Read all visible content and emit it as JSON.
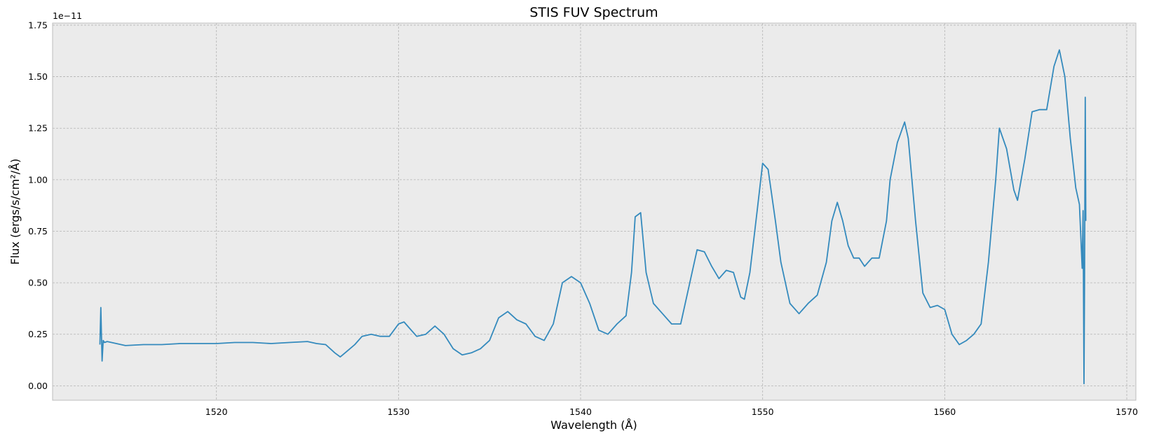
{
  "colors": {
    "line": "#348ABD",
    "plot_bg": "#EBEBEB",
    "grid": "#B4B4B4",
    "frame": "#BCBCBC"
  },
  "chart_data": {
    "type": "line",
    "title": "STIS FUV Spectrum",
    "xlabel": "Wavelength (Å)",
    "ylabel": "Flux (ergs/s/cm²/Å)",
    "y_offset_label": "1e−11",
    "xlim": [
      1511,
      1570.5
    ],
    "ylim": [
      -0.07,
      1.76
    ],
    "x_ticks": [
      1520,
      1530,
      1540,
      1550,
      1560,
      1570
    ],
    "x_tick_labels": [
      "1520",
      "1530",
      "1540",
      "1550",
      "1560",
      "1570"
    ],
    "y_ticks": [
      0,
      0.25,
      0.5,
      0.75,
      1.0,
      1.25,
      1.5,
      1.75
    ],
    "y_tick_labels": [
      "0.00",
      "0.25",
      "0.50",
      "0.75",
      "1.00",
      "1.25",
      "1.50",
      "1.75"
    ],
    "grid": true,
    "series": [
      {
        "name": "flux",
        "x": [
          1513.6,
          1513.65,
          1513.72,
          1513.78,
          1513.85,
          1514.0,
          1514.5,
          1515.0,
          1516.0,
          1517.0,
          1518.0,
          1519.0,
          1520.0,
          1521.0,
          1522.0,
          1523.0,
          1524.0,
          1525.0,
          1525.5,
          1526.0,
          1526.5,
          1526.8,
          1527.2,
          1527.6,
          1528.0,
          1528.5,
          1529.0,
          1529.5,
          1530.0,
          1530.3,
          1530.7,
          1531.0,
          1531.5,
          1532.0,
          1532.5,
          1533.0,
          1533.5,
          1534.0,
          1534.5,
          1535.0,
          1535.5,
          1536.0,
          1536.5,
          1537.0,
          1537.5,
          1538.0,
          1538.5,
          1539.0,
          1539.5,
          1540.0,
          1540.5,
          1541.0,
          1541.5,
          1542.0,
          1542.5,
          1542.8,
          1543.0,
          1543.3,
          1543.6,
          1544.0,
          1544.5,
          1545.0,
          1545.5,
          1546.0,
          1546.4,
          1546.8,
          1547.2,
          1547.6,
          1548.0,
          1548.4,
          1548.8,
          1549.0,
          1549.3,
          1549.7,
          1550.0,
          1550.3,
          1550.7,
          1551.0,
          1551.5,
          1552.0,
          1552.5,
          1553.0,
          1553.5,
          1553.8,
          1554.1,
          1554.4,
          1554.7,
          1555.0,
          1555.3,
          1555.6,
          1556.0,
          1556.4,
          1556.8,
          1557.0,
          1557.4,
          1557.8,
          1558.0,
          1558.4,
          1558.8,
          1559.2,
          1559.6,
          1560.0,
          1560.4,
          1560.8,
          1561.2,
          1561.6,
          1562.0,
          1562.4,
          1562.8,
          1563.0,
          1563.4,
          1563.8,
          1564.0,
          1564.4,
          1564.8,
          1565.2,
          1565.6,
          1566.0,
          1566.3,
          1566.6,
          1566.9,
          1567.2,
          1567.4,
          1567.55,
          1567.6,
          1567.65,
          1567.68,
          1567.72,
          1567.75
        ],
        "values": [
          0.2,
          0.38,
          0.12,
          0.22,
          0.21,
          0.215,
          0.205,
          0.195,
          0.2,
          0.2,
          0.205,
          0.205,
          0.205,
          0.21,
          0.21,
          0.205,
          0.21,
          0.215,
          0.205,
          0.2,
          0.16,
          0.14,
          0.17,
          0.2,
          0.24,
          0.25,
          0.24,
          0.24,
          0.3,
          0.31,
          0.27,
          0.24,
          0.25,
          0.29,
          0.25,
          0.18,
          0.15,
          0.16,
          0.18,
          0.22,
          0.33,
          0.36,
          0.32,
          0.3,
          0.24,
          0.22,
          0.3,
          0.5,
          0.53,
          0.5,
          0.4,
          0.27,
          0.25,
          0.3,
          0.34,
          0.55,
          0.82,
          0.84,
          0.55,
          0.4,
          0.35,
          0.3,
          0.3,
          0.5,
          0.66,
          0.65,
          0.58,
          0.52,
          0.56,
          0.55,
          0.43,
          0.42,
          0.55,
          0.85,
          1.08,
          1.05,
          0.8,
          0.6,
          0.4,
          0.35,
          0.4,
          0.44,
          0.6,
          0.8,
          0.89,
          0.8,
          0.68,
          0.62,
          0.62,
          0.58,
          0.62,
          0.62,
          0.8,
          1.0,
          1.18,
          1.28,
          1.2,
          0.8,
          0.45,
          0.38,
          0.39,
          0.37,
          0.25,
          0.2,
          0.22,
          0.25,
          0.3,
          0.6,
          1.0,
          1.25,
          1.15,
          0.95,
          0.9,
          1.1,
          1.33,
          1.34,
          1.34,
          1.55,
          1.63,
          1.5,
          1.2,
          0.96,
          0.88,
          0.57,
          0.85,
          0.01,
          0.5,
          1.4,
          0.8
        ]
      }
    ]
  }
}
